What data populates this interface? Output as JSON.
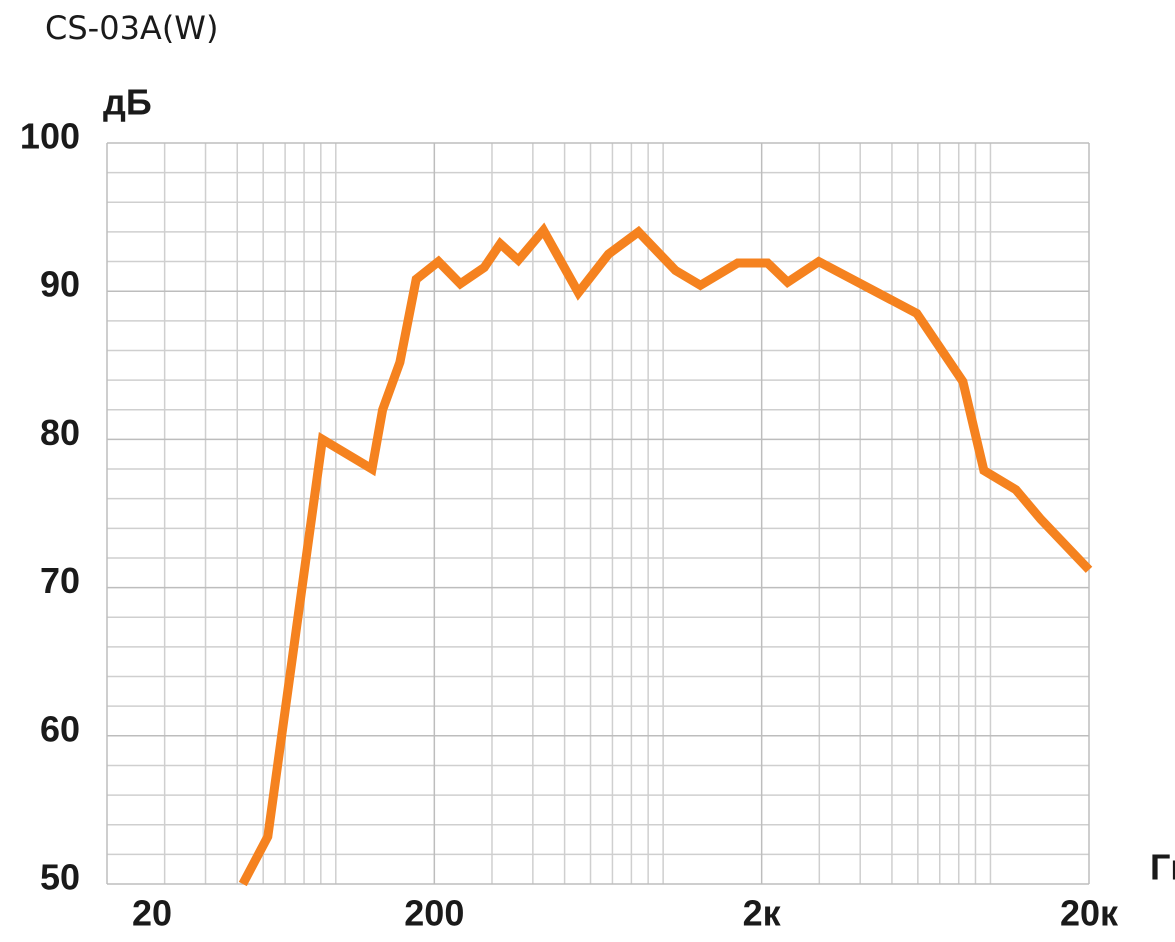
{
  "chart_data": {
    "type": "line",
    "title": "CS-03A(W)",
    "y_label": "дБ",
    "x_label": "Гц",
    "x_scale": "log",
    "xlim": [
      20,
      20000
    ],
    "ylim": [
      50,
      100
    ],
    "xticks": [
      20,
      200,
      {
        "value": 2000,
        "label": "2к"
      },
      {
        "value": 20000,
        "label": "20к"
      }
    ],
    "yticks": [
      50,
      60,
      70,
      80,
      90,
      100
    ],
    "x_minor_grid": [
      30,
      40,
      50,
      60,
      70,
      80,
      90,
      100,
      300,
      400,
      500,
      600,
      700,
      800,
      900,
      1000,
      3000,
      4000,
      5000,
      6000,
      7000,
      8000,
      9000,
      10000
    ],
    "y_minor_grid": [
      52,
      54,
      56,
      58,
      62,
      64,
      66,
      68,
      72,
      74,
      76,
      78,
      82,
      84,
      86,
      88,
      92,
      94,
      96,
      98
    ],
    "grid": true,
    "series": [
      {
        "color": "#f5821f",
        "x": [
          52,
          62,
          91,
          129,
          139,
          157,
          176,
          206,
          240,
          284,
          318,
          361,
          431,
          551,
          681,
          841,
          1091,
          1300,
          1690,
          2085,
          2400,
          2990,
          5955,
          8240,
          9550,
          11970,
          14260,
          20000
        ],
        "values": [
          50,
          53.2,
          80,
          78,
          82,
          85.2,
          90.8,
          92,
          90.5,
          91.6,
          93.2,
          92.1,
          94.1,
          89.9,
          92.5,
          94,
          91.4,
          90.4,
          91.9,
          91.9,
          90.6,
          92,
          88.5,
          83.9,
          77.9,
          76.6,
          74.6,
          71.2
        ]
      }
    ]
  }
}
